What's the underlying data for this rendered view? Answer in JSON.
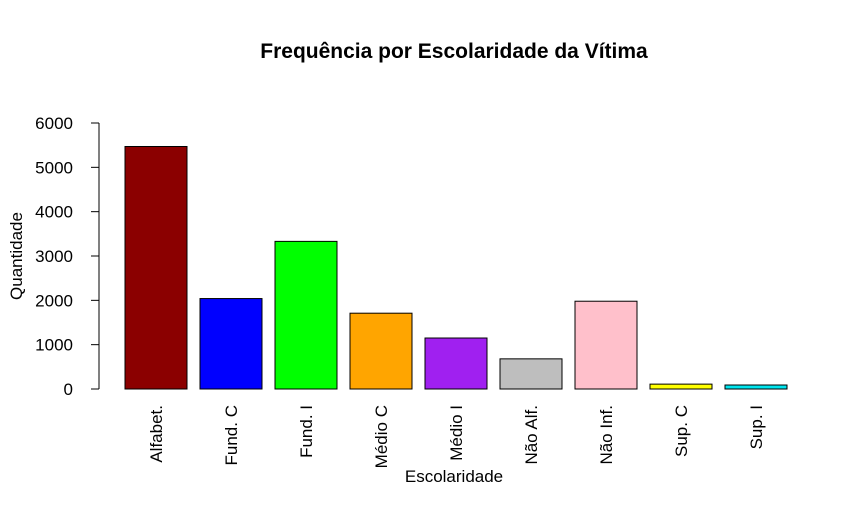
{
  "chart_data": {
    "type": "bar",
    "title": "Frequência por Escolaridade da Vítima",
    "xlabel": "Escolaridade",
    "ylabel": "Quantidade",
    "categories": [
      "Alfabet.",
      "Fund. C",
      "Fund. I",
      "Médio C",
      "Médio I",
      "Não Alf.",
      "Não Inf.",
      "Sup. C",
      "Sup. I"
    ],
    "values": [
      5470,
      2040,
      3330,
      1710,
      1150,
      680,
      1980,
      110,
      90
    ],
    "colors": [
      "#8B0000",
      "#0000FF",
      "#00FF00",
      "#FFA500",
      "#A020F0",
      "#BEBEBE",
      "#FFC0CB",
      "#FFFF00",
      "#00E5EE"
    ],
    "yticks": [
      0,
      1000,
      2000,
      3000,
      4000,
      5000,
      6000
    ],
    "ylim": [
      0,
      6000
    ],
    "grid": false,
    "legend": "none"
  }
}
